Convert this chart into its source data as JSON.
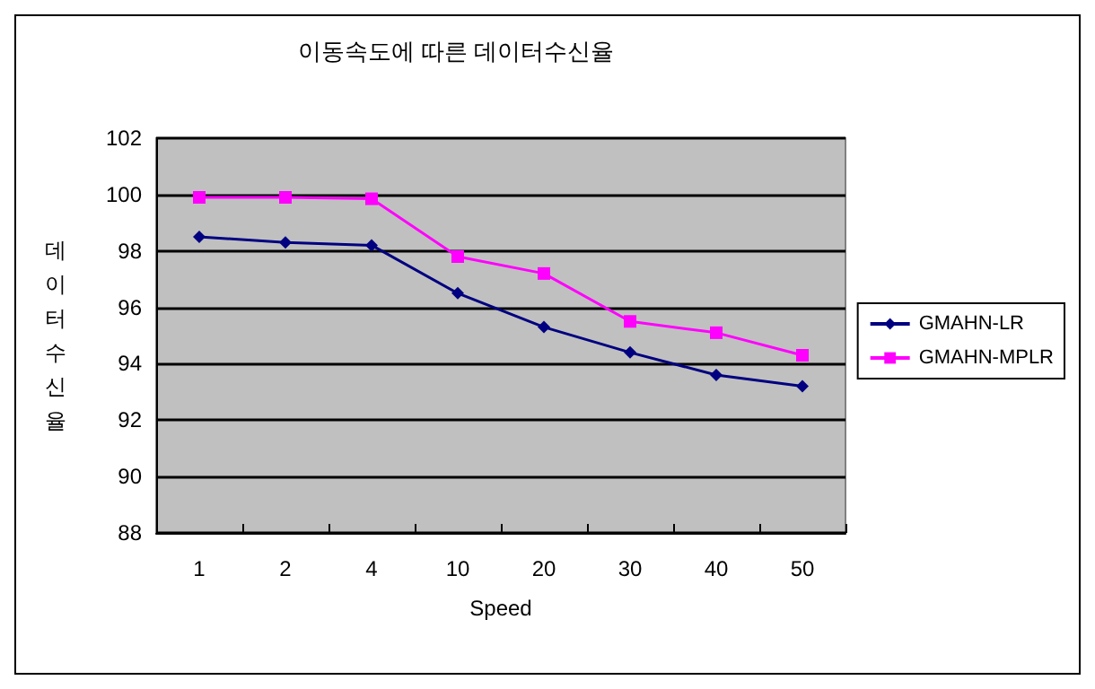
{
  "chart_data": {
    "type": "line",
    "title": "이동속도에 따른 데이터수신율",
    "xlabel": "Speed",
    "ylabel": "데이터수신율",
    "categories": [
      "1",
      "2",
      "4",
      "10",
      "20",
      "30",
      "40",
      "50"
    ],
    "series": [
      {
        "name": "GMAHN-LR",
        "color": "#000080",
        "marker": "diamond",
        "values": [
          98.5,
          98.3,
          98.2,
          96.5,
          95.3,
          94.4,
          93.6,
          93.2
        ]
      },
      {
        "name": "GMAHN-MPLR",
        "color": "#ff00ff",
        "marker": "square",
        "values": [
          99.9,
          99.9,
          99.85,
          97.8,
          97.2,
          95.5,
          95.1,
          94.3
        ]
      }
    ],
    "ylim": [
      88,
      102
    ],
    "yticks": [
      88,
      90,
      92,
      94,
      96,
      98,
      100,
      102
    ],
    "grid": "y",
    "legend": "right"
  }
}
